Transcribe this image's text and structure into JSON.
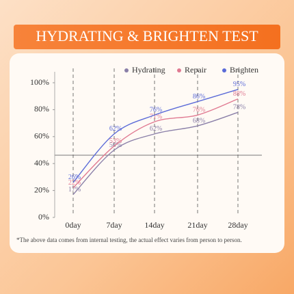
{
  "chart_data": {
    "type": "line",
    "title": "HYDRATING & BRIGHTEN TEST",
    "categories": [
      "0day",
      "7day",
      "14day",
      "21day",
      "28day"
    ],
    "series": [
      {
        "name": "Hydrating",
        "color": "#8a7fa8",
        "values": [
          17,
          50,
          62,
          68,
          78
        ],
        "value_labels": [
          "17%",
          "50%",
          "62%",
          "68%",
          "78%"
        ]
      },
      {
        "name": "Repair",
        "color": "#e07a92",
        "values": [
          22,
          53,
          71,
          76,
          88
        ],
        "value_labels": [
          "22%",
          "53%",
          "71%",
          "76%",
          "88%"
        ]
      },
      {
        "name": "Brighten",
        "color": "#5b6bd8",
        "values": [
          26,
          62,
          76,
          86,
          95
        ],
        "value_labels": [
          "26%",
          "62%",
          "76%",
          "86%",
          "95%"
        ]
      }
    ],
    "ylim": [
      0,
      100
    ],
    "yticks": [
      {
        "value": 0,
        "label": "0%"
      },
      {
        "value": 20,
        "label": "20%"
      },
      {
        "value": 40,
        "label": "40%"
      },
      {
        "value": 60,
        "label": "60%"
      },
      {
        "value": 80,
        "label": "80%"
      },
      {
        "value": 100,
        "label": "100%"
      }
    ],
    "footnote": "*The above data comes from internal testing, the actual effect varies from person to person."
  }
}
